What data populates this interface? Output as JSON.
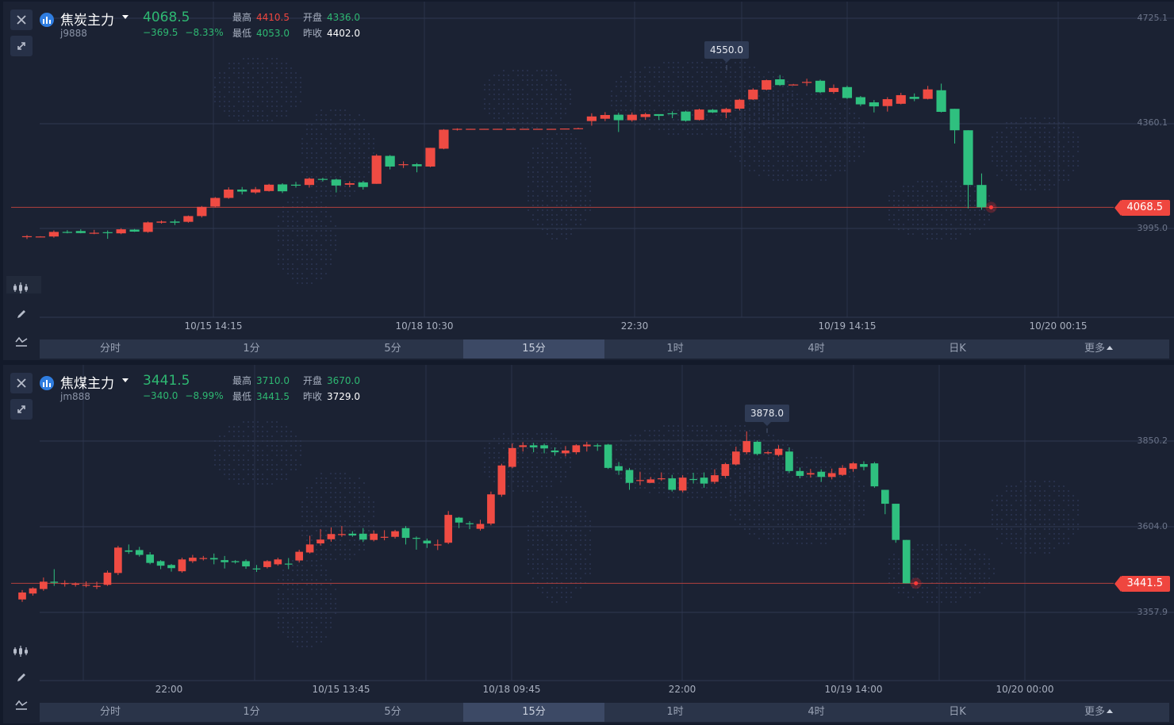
{
  "panels": [
    {
      "name": "焦炭主力",
      "code": "j9888",
      "price": "4068.5",
      "change": "−369.5",
      "change_pct": "−8.33%",
      "stats": {
        "high_label": "最高",
        "high": "4410.5",
        "open_label": "开盘",
        "open": "4336.0",
        "low_label": "最低",
        "low": "4053.0",
        "prev_label": "昨收",
        "prev": "4402.0"
      },
      "colors": {
        "price": "#2eb872",
        "high": "#f0463f",
        "open": "#2eb872",
        "low": "#2eb872",
        "prev": "#ffffff"
      },
      "y_ticks": [
        "4725.1",
        "4360.1",
        "3995.0"
      ],
      "x_ticks": [
        "10/15 14:15",
        "10/18 10:30",
        "22:30",
        "10/19 14:15",
        "10/20 00:15"
      ],
      "last_price_tag": "4068.5",
      "max_tip": "4550.0",
      "chart_data": {
        "type": "candlestick",
        "y_ticks": [
          4725.1,
          4360.1,
          3995.0
        ],
        "last": 4068.5,
        "tip_value": 4550.0,
        "candles": [
          [
            3965,
            3968,
            3958,
            3972
          ],
          [
            3967,
            3967,
            3966,
            3968
          ],
          [
            3967,
            3983,
            3963,
            3988
          ],
          [
            3983,
            3982,
            3978,
            3989
          ],
          [
            3986,
            3979,
            3978,
            3992
          ],
          [
            3980,
            3980,
            3975,
            3990
          ],
          [
            3982,
            3980,
            3959,
            3988
          ],
          [
            3978,
            3992,
            3975,
            3996
          ],
          [
            3991,
            3984,
            3983,
            3993
          ],
          [
            3983,
            4016,
            3980,
            4019
          ],
          [
            4015,
            4019,
            4012,
            4023
          ],
          [
            4019,
            4015,
            4007,
            4026
          ],
          [
            4018,
            4038,
            4015,
            4040
          ],
          [
            4038,
            4070,
            4033,
            4073
          ],
          [
            4071,
            4101,
            4068,
            4104
          ],
          [
            4101,
            4130,
            4098,
            4138
          ],
          [
            4130,
            4123,
            4113,
            4139
          ],
          [
            4120,
            4131,
            4115,
            4139
          ],
          [
            4125,
            4147,
            4123,
            4150
          ],
          [
            4148,
            4124,
            4118,
            4152
          ],
          [
            4147,
            4144,
            4137,
            4157
          ],
          [
            4146,
            4168,
            4137,
            4172
          ],
          [
            4167,
            4165,
            4158,
            4171
          ],
          [
            4165,
            4144,
            4120,
            4168
          ],
          [
            4147,
            4152,
            4138,
            4159
          ],
          [
            4155,
            4139,
            4130,
            4160
          ],
          [
            4150,
            4248,
            4150,
            4253
          ],
          [
            4247,
            4210,
            4200,
            4250
          ],
          [
            4215,
            4218,
            4205,
            4228
          ],
          [
            4218,
            4211,
            4190,
            4222
          ],
          [
            4210,
            4275,
            4208,
            4275
          ],
          [
            4272,
            4338,
            4270,
            4340
          ],
          [
            4338,
            4341,
            4335,
            4343
          ],
          [
            4341,
            4341,
            4340,
            4341
          ],
          [
            4341,
            4341,
            4340,
            4341
          ],
          [
            4341,
            4341,
            4340,
            4341
          ],
          [
            4341,
            4341,
            4340,
            4341
          ],
          [
            4341,
            4341,
            4340,
            4341
          ],
          [
            4341,
            4341,
            4340,
            4341
          ],
          [
            4341,
            4341,
            4340,
            4341
          ],
          [
            4341,
            4342,
            4340,
            4342
          ],
          [
            4342,
            4343,
            4341,
            4345
          ],
          [
            4368,
            4384,
            4352,
            4395
          ],
          [
            4376,
            4389,
            4368,
            4399
          ],
          [
            4390,
            4371,
            4330,
            4397
          ],
          [
            4371,
            4390,
            4366,
            4398
          ],
          [
            4382,
            4392,
            4372,
            4397
          ],
          [
            4392,
            4386,
            4372,
            4392
          ],
          [
            4395,
            4394,
            4378,
            4402
          ],
          [
            4401,
            4369,
            4366,
            4404
          ],
          [
            4372,
            4408,
            4370,
            4411
          ],
          [
            4407,
            4398,
            4396,
            4410
          ],
          [
            4398,
            4410,
            4378,
            4414
          ],
          [
            4411,
            4442,
            4405,
            4445
          ],
          [
            4443,
            4477,
            4441,
            4482
          ],
          [
            4477,
            4510,
            4475,
            4512
          ],
          [
            4513,
            4493,
            4490,
            4528
          ],
          [
            4494,
            4495,
            4492,
            4497
          ],
          [
            4502,
            4504,
            4490,
            4515
          ],
          [
            4508,
            4468,
            4465,
            4512
          ],
          [
            4469,
            4483,
            4463,
            4495
          ],
          [
            4486,
            4448,
            4445,
            4491
          ],
          [
            4451,
            4426,
            4420,
            4455
          ],
          [
            4433,
            4419,
            4398,
            4441
          ],
          [
            4420,
            4444,
            4401,
            4451
          ],
          [
            4428,
            4458,
            4426,
            4466
          ],
          [
            4452,
            4445,
            4437,
            4464
          ],
          [
            4445,
            4478,
            4443,
            4490
          ],
          [
            4475,
            4400,
            4398,
            4498
          ],
          [
            4410.5,
            4336,
            4290,
            4410.5
          ],
          [
            4336,
            4146,
            4065,
            4336
          ],
          [
            4146,
            4068.5,
            4060,
            4186
          ]
        ]
      }
    },
    {
      "name": "焦煤主力",
      "code": "jm888",
      "price": "3441.5",
      "change": "−340.0",
      "change_pct": "−8.99%",
      "stats": {
        "high_label": "最高",
        "high": "3710.0",
        "open_label": "开盘",
        "open": "3670.0",
        "low_label": "最低",
        "low": "3441.5",
        "prev_label": "昨收",
        "prev": "3729.0"
      },
      "colors": {
        "price": "#2eb872",
        "high": "#2eb872",
        "open": "#2eb872",
        "low": "#2eb872",
        "prev": "#ffffff"
      },
      "y_ticks": [
        "3850.2",
        "3604.0",
        "3357.9"
      ],
      "x_ticks": [
        "22:00",
        "10/15 13:45",
        "10/18 09:45",
        "22:00",
        "10/19 14:00",
        "10/20 00:00"
      ],
      "last_price_tag": "3441.5",
      "max_tip": "3878.0",
      "chart_data": {
        "type": "candlestick",
        "y_ticks": [
          3850.2,
          3604.0,
          3357.9
        ],
        "last": 3441.5,
        "tip_value": 3878.0,
        "candles": [
          [
            3395,
            3415,
            3388,
            3422
          ],
          [
            3412,
            3427,
            3406,
            3430
          ],
          [
            3425,
            3446,
            3420,
            3458
          ],
          [
            3446,
            3443,
            3434,
            3482
          ],
          [
            3440,
            3442,
            3432,
            3450
          ],
          [
            3440,
            3440,
            3432,
            3444
          ],
          [
            3437,
            3437,
            3430,
            3447
          ],
          [
            3434,
            3434,
            3425,
            3446
          ],
          [
            3437,
            3472,
            3434,
            3478
          ],
          [
            3471,
            3544,
            3465,
            3549
          ],
          [
            3536,
            3532,
            3526,
            3553
          ],
          [
            3537,
            3523,
            3518,
            3546
          ],
          [
            3524,
            3500,
            3496,
            3531
          ],
          [
            3505,
            3492,
            3482,
            3508
          ],
          [
            3494,
            3485,
            3475,
            3497
          ],
          [
            3476,
            3510,
            3472,
            3515
          ],
          [
            3505,
            3515,
            3500,
            3523
          ],
          [
            3514,
            3514,
            3507,
            3520
          ],
          [
            3514,
            3510,
            3496,
            3527
          ],
          [
            3508,
            3502,
            3484,
            3520
          ],
          [
            3505,
            3502,
            3498,
            3508
          ],
          [
            3505,
            3490,
            3483,
            3510
          ],
          [
            3484,
            3483,
            3474,
            3494
          ],
          [
            3488,
            3505,
            3484,
            3508
          ],
          [
            3496,
            3510,
            3492,
            3515
          ],
          [
            3498,
            3497,
            3482,
            3514
          ],
          [
            3507,
            3532,
            3501,
            3538
          ],
          [
            3530,
            3553,
            3527,
            3578
          ],
          [
            3556,
            3567,
            3550,
            3597
          ],
          [
            3568,
            3583,
            3561,
            3602
          ],
          [
            3580,
            3583,
            3575,
            3606
          ],
          [
            3584,
            3579,
            3575,
            3591
          ],
          [
            3584,
            3567,
            3560,
            3600
          ],
          [
            3566,
            3584,
            3562,
            3593
          ],
          [
            3575,
            3575,
            3565,
            3594
          ],
          [
            3575,
            3591,
            3570,
            3595
          ],
          [
            3600,
            3572,
            3553,
            3606
          ],
          [
            3572,
            3570,
            3538,
            3576
          ],
          [
            3564,
            3556,
            3543,
            3570
          ],
          [
            3553,
            3553,
            3537,
            3567
          ],
          [
            3558,
            3638,
            3554,
            3649
          ],
          [
            3630,
            3616,
            3600,
            3632
          ],
          [
            3614,
            3612,
            3597,
            3620
          ],
          [
            3598,
            3612,
            3593,
            3624
          ],
          [
            3613,
            3697,
            3608,
            3705
          ],
          [
            3696,
            3780,
            3690,
            3785
          ],
          [
            3776,
            3830,
            3772,
            3843
          ],
          [
            3833,
            3838,
            3820,
            3847
          ],
          [
            3838,
            3832,
            3818,
            3845
          ],
          [
            3838,
            3829,
            3815,
            3843
          ],
          [
            3823,
            3818,
            3808,
            3832
          ],
          [
            3815,
            3823,
            3806,
            3836
          ],
          [
            3818,
            3838,
            3812,
            3841
          ],
          [
            3835,
            3840,
            3820,
            3848
          ],
          [
            3838,
            3835,
            3822,
            3843
          ],
          [
            3840,
            3773,
            3770,
            3842
          ],
          [
            3778,
            3765,
            3753,
            3790
          ],
          [
            3767,
            3730,
            3710,
            3773
          ],
          [
            3737,
            3738,
            3723,
            3762
          ],
          [
            3730,
            3740,
            3730,
            3747
          ],
          [
            3742,
            3743,
            3736,
            3760
          ],
          [
            3743,
            3710,
            3705,
            3753
          ],
          [
            3708,
            3745,
            3703,
            3752
          ],
          [
            3741,
            3740,
            3728,
            3759
          ],
          [
            3745,
            3728,
            3716,
            3760
          ],
          [
            3733,
            3752,
            3727,
            3769
          ],
          [
            3750,
            3784,
            3744,
            3788
          ],
          [
            3783,
            3820,
            3780,
            3834
          ],
          [
            3818,
            3850,
            3812,
            3878
          ],
          [
            3848,
            3813,
            3809,
            3852
          ],
          [
            3815,
            3818,
            3812,
            3822
          ],
          [
            3810,
            3828,
            3806,
            3838
          ],
          [
            3820,
            3764,
            3758,
            3832
          ],
          [
            3764,
            3750,
            3743,
            3774
          ],
          [
            3754,
            3758,
            3745,
            3770
          ],
          [
            3762,
            3747,
            3733,
            3769
          ],
          [
            3747,
            3758,
            3740,
            3771
          ],
          [
            3753,
            3773,
            3750,
            3781
          ],
          [
            3770,
            3786,
            3762,
            3790
          ],
          [
            3784,
            3776,
            3766,
            3792
          ],
          [
            3786,
            3720,
            3716,
            3790
          ],
          [
            3710,
            3670,
            3640,
            3710
          ],
          [
            3670,
            3566,
            3558,
            3670
          ],
          [
            3566,
            3441.5,
            3441.5,
            3566
          ]
        ]
      }
    }
  ],
  "period_tabs": [
    "分时",
    "1分",
    "5分",
    "15分",
    "1时",
    "4时",
    "日K",
    "更多"
  ],
  "active_period": "15分",
  "icons": [
    "close-icon",
    "expand-icon",
    "indicator-icon",
    "pencil-icon",
    "wave-icon"
  ]
}
